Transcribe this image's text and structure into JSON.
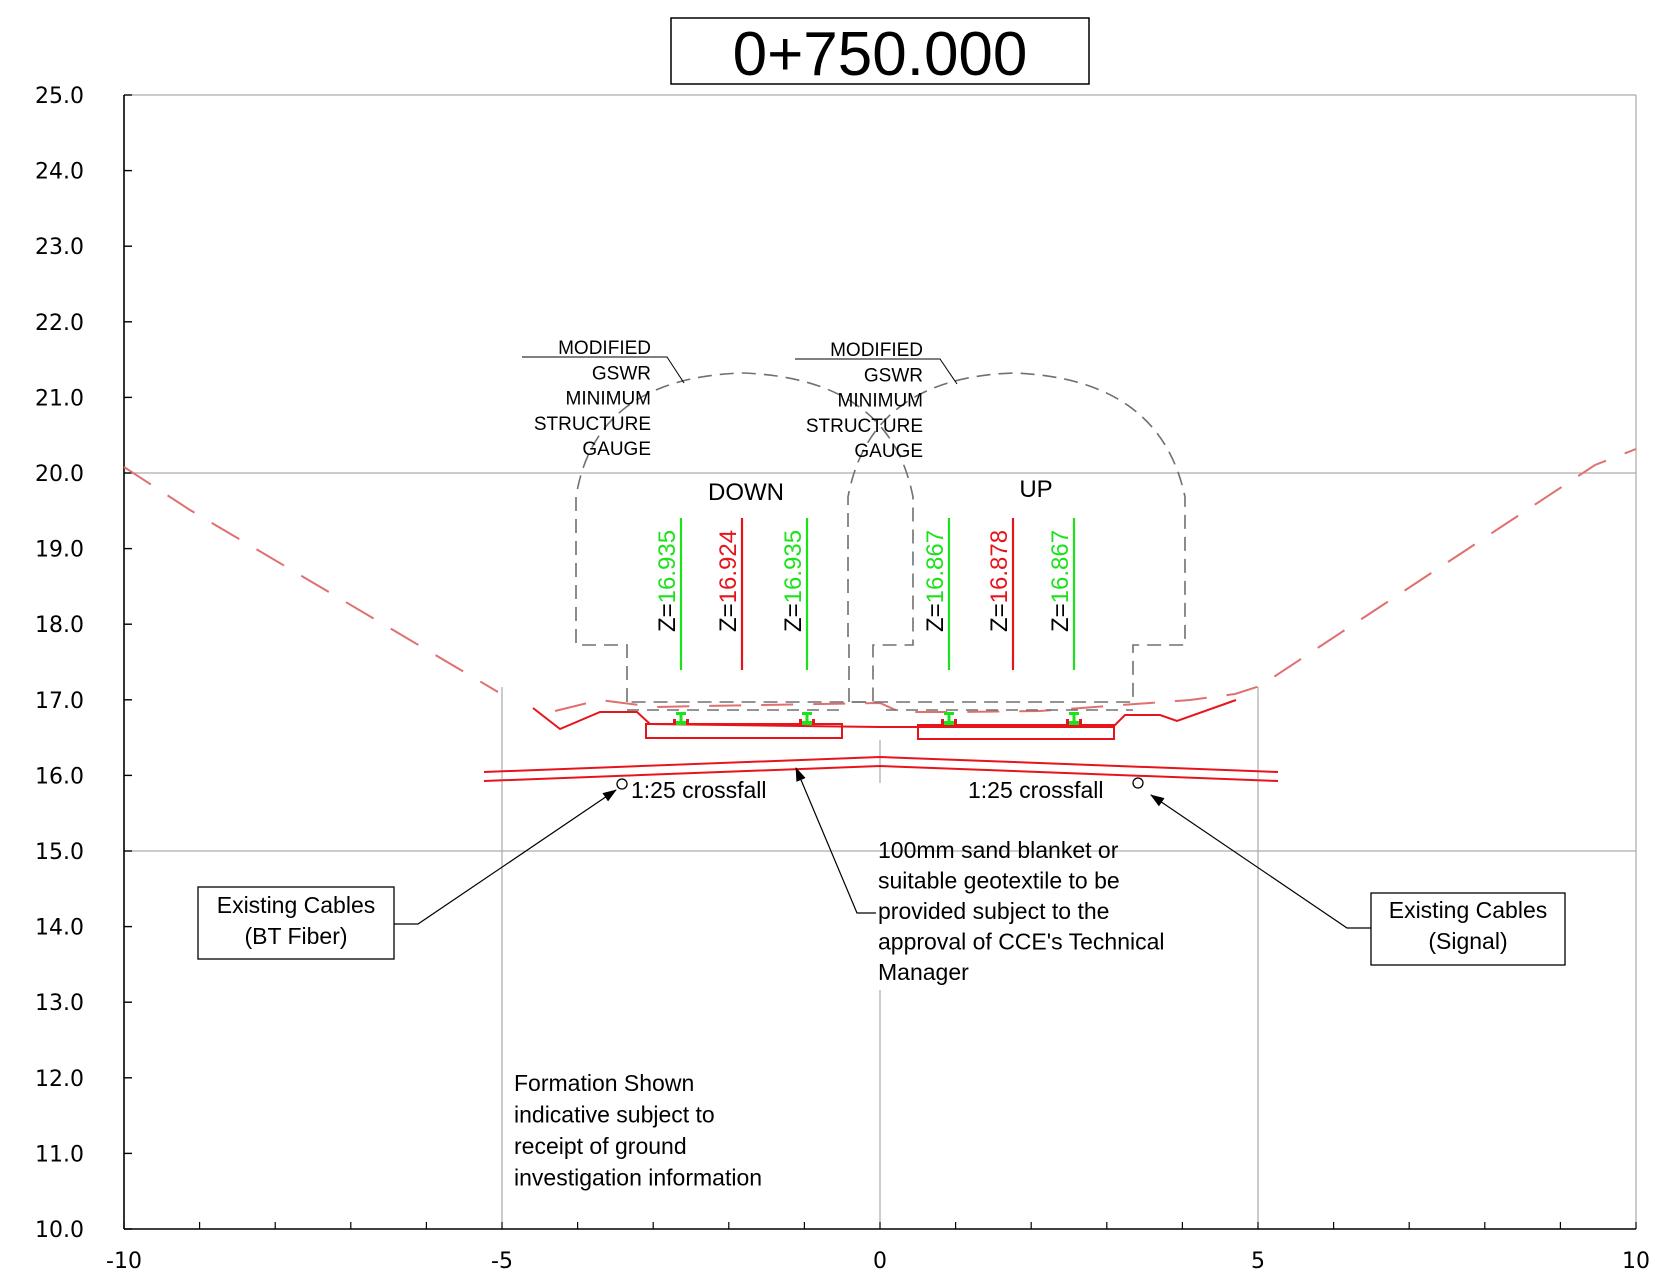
{
  "chainage": "0+750.000",
  "axes": {
    "x_ticks": [
      "-10",
      "-5",
      "0",
      "5",
      "10"
    ],
    "y_ticks": [
      "25.0",
      "24.0",
      "23.0",
      "22.0",
      "21.0",
      "20.0",
      "19.0",
      "18.0",
      "17.0",
      "16.0",
      "15.0",
      "14.0",
      "13.0",
      "12.0",
      "11.0",
      "10.0"
    ],
    "xlim": [
      -10,
      10
    ],
    "ylim": [
      10,
      25
    ]
  },
  "tracks": {
    "down": {
      "label": "DOWN",
      "rails": [
        {
          "prefix": "Z=",
          "value": "16.935",
          "color": "#1be21b"
        },
        {
          "prefix": "Z=",
          "value": "16.924",
          "color": "#e8141c"
        },
        {
          "prefix": "Z=",
          "value": "16.935",
          "color": "#1be21b"
        }
      ]
    },
    "up": {
      "label": "UP",
      "rails": [
        {
          "prefix": "Z=",
          "value": "16.867",
          "color": "#1be21b"
        },
        {
          "prefix": "Z=",
          "value": "16.878",
          "color": "#e8141c"
        },
        {
          "prefix": "Z=",
          "value": "16.867",
          "color": "#1be21b"
        }
      ]
    }
  },
  "gauge_labels": {
    "left": [
      "MODIFIED",
      "GSWR",
      "MINIMUM",
      "STRUCTURE",
      "GAUGE"
    ],
    "right": [
      "MODIFIED",
      "GSWR",
      "MINIMUM",
      "STRUCTURE",
      "GAUGE"
    ]
  },
  "crossfall": {
    "left": "1:25 crossfall",
    "right": "1:25 crossfall"
  },
  "callouts": {
    "cables_left": [
      "Existing Cables",
      "(BT Fiber)"
    ],
    "cables_right": [
      "Existing Cables",
      "(Signal)"
    ],
    "sand_blanket": [
      "100mm sand blanket or",
      "suitable geotextile to be",
      "provided subject to the",
      "approval of CCE's Technical",
      "Manager"
    ],
    "formation": [
      "Formation Shown",
      "indicative subject to",
      "receipt of ground",
      "investigation information"
    ]
  },
  "colors": {
    "design_line": "#e8141c",
    "existing_ground": "#e07070",
    "rail_green": "#1be21b",
    "gauge": "#707070",
    "grid": "#9a9a9a"
  }
}
